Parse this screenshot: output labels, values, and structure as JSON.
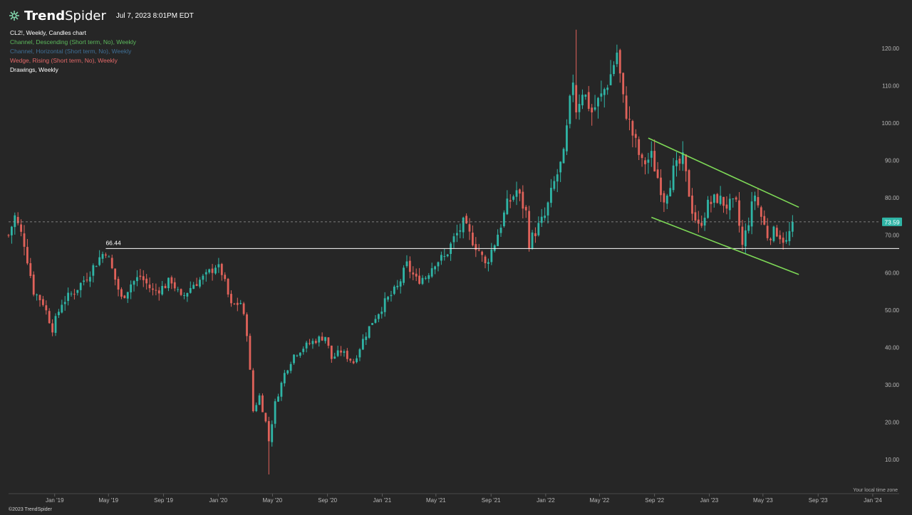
{
  "header": {
    "brand_bold": "Trend",
    "brand_regular": "Spider",
    "timestamp": "Jul 7, 2023 8:01PM EDT"
  },
  "legend": [
    {
      "label": "CL2!, Weekly, Candles chart",
      "color": "#ffffff"
    },
    {
      "label": "Channel, Descending (Short term, No), Weekly",
      "color": "#5cb85c"
    },
    {
      "label": "Channel, Horizontal (Short term, No), Weekly",
      "color": "#3f6f96"
    },
    {
      "label": "Wedge, Rising (Short term, No), Weekly",
      "color": "#e26868"
    },
    {
      "label": "Drawings, Weekly",
      "color": "#ffffff"
    }
  ],
  "footer": {
    "copyright": "©2023 TrendSpider",
    "timezone": "Your local time zone"
  },
  "colors": {
    "background": "#262626",
    "up": "#2fb5a6",
    "down": "#e0625a",
    "channel": "#7ed957",
    "level_line": "#ffffff",
    "last_price_bg": "#2fb5a6"
  },
  "chart_data": {
    "type": "candlestick",
    "timeframe": "Weekly",
    "ylim": [
      4,
      126
    ],
    "xlim": [
      "2018-09-20",
      "2024-02-29"
    ],
    "y_ticks": [
      "10.00",
      "20.00",
      "30.00",
      "40.00",
      "50.00",
      "60.00",
      "70.00",
      "80.00",
      "90.00",
      "100.00",
      "110.00",
      "120.00"
    ],
    "x_ticks": [
      {
        "date": "2019-01-01",
        "label": "Jan '19"
      },
      {
        "date": "2019-05-01",
        "label": "May '19"
      },
      {
        "date": "2019-09-01",
        "label": "Sep '19"
      },
      {
        "date": "2020-01-01",
        "label": "Jan '20"
      },
      {
        "date": "2020-05-01",
        "label": "May '20"
      },
      {
        "date": "2020-09-01",
        "label": "Sep '20"
      },
      {
        "date": "2021-01-01",
        "label": "Jan '21"
      },
      {
        "date": "2021-05-01",
        "label": "May '21"
      },
      {
        "date": "2021-09-01",
        "label": "Sep '21"
      },
      {
        "date": "2022-01-01",
        "label": "Jan '22"
      },
      {
        "date": "2022-05-01",
        "label": "May '22"
      },
      {
        "date": "2022-09-01",
        "label": "Sep '22"
      },
      {
        "date": "2023-01-01",
        "label": "Jan '23"
      },
      {
        "date": "2023-05-01",
        "label": "May '23"
      },
      {
        "date": "2023-09-01",
        "label": "Sep '23"
      },
      {
        "date": "2024-01-01",
        "label": "Jan '24"
      }
    ],
    "last_price": 73.59,
    "last_price_label": "73.59",
    "level": {
      "value": 66.44,
      "label": "66.44",
      "start": "2019-04-25"
    },
    "channel_upper": [
      {
        "date": "2022-08-18",
        "y": 96.0
      },
      {
        "date": "2023-07-20",
        "y": 77.5
      }
    ],
    "channel_lower": [
      {
        "date": "2022-08-25",
        "y": 74.8
      },
      {
        "date": "2023-07-20",
        "y": 59.5
      }
    ],
    "series": [
      {
        "date": "2018-09-20",
        "y": 70
      },
      {
        "date": "2018-10-04",
        "y": 75
      },
      {
        "date": "2018-10-25",
        "y": 68
      },
      {
        "date": "2018-11-15",
        "y": 55
      },
      {
        "date": "2018-12-06",
        "y": 52
      },
      {
        "date": "2018-12-27",
        "y": 45
      },
      {
        "date": "2019-01-17",
        "y": 52
      },
      {
        "date": "2019-02-14",
        "y": 55
      },
      {
        "date": "2019-03-14",
        "y": 59
      },
      {
        "date": "2019-04-11",
        "y": 64
      },
      {
        "date": "2019-04-25",
        "y": 66
      },
      {
        "date": "2019-05-30",
        "y": 53
      },
      {
        "date": "2019-06-20",
        "y": 57
      },
      {
        "date": "2019-07-11",
        "y": 59
      },
      {
        "date": "2019-08-08",
        "y": 55
      },
      {
        "date": "2019-08-29",
        "y": 56
      },
      {
        "date": "2019-09-19",
        "y": 58
      },
      {
        "date": "2019-10-10",
        "y": 53
      },
      {
        "date": "2019-11-07",
        "y": 57
      },
      {
        "date": "2019-12-05",
        "y": 59
      },
      {
        "date": "2019-12-26",
        "y": 62
      },
      {
        "date": "2020-01-09",
        "y": 60
      },
      {
        "date": "2020-01-30",
        "y": 51
      },
      {
        "date": "2020-02-20",
        "y": 52
      },
      {
        "date": "2020-03-05",
        "y": 44
      },
      {
        "date": "2020-03-19",
        "y": 23
      },
      {
        "date": "2020-04-02",
        "y": 27
      },
      {
        "date": "2020-04-16",
        "y": 20
      },
      {
        "date": "2020-04-23",
        "y": 15
      },
      {
        "date": "2020-05-07",
        "y": 25
      },
      {
        "date": "2020-05-28",
        "y": 33
      },
      {
        "date": "2020-06-18",
        "y": 38
      },
      {
        "date": "2020-07-09",
        "y": 40
      },
      {
        "date": "2020-08-06",
        "y": 42
      },
      {
        "date": "2020-08-27",
        "y": 43
      },
      {
        "date": "2020-09-10",
        "y": 37
      },
      {
        "date": "2020-10-01",
        "y": 39
      },
      {
        "date": "2020-10-29",
        "y": 36
      },
      {
        "date": "2020-11-19",
        "y": 42
      },
      {
        "date": "2020-12-10",
        "y": 47
      },
      {
        "date": "2021-01-07",
        "y": 52
      },
      {
        "date": "2021-02-04",
        "y": 56
      },
      {
        "date": "2021-02-25",
        "y": 62
      },
      {
        "date": "2021-03-18",
        "y": 58
      },
      {
        "date": "2021-04-08",
        "y": 59
      },
      {
        "date": "2021-04-29",
        "y": 63
      },
      {
        "date": "2021-05-20",
        "y": 64
      },
      {
        "date": "2021-06-10",
        "y": 69
      },
      {
        "date": "2021-07-01",
        "y": 73
      },
      {
        "date": "2021-07-15",
        "y": 70
      },
      {
        "date": "2021-08-05",
        "y": 66
      },
      {
        "date": "2021-08-19",
        "y": 62
      },
      {
        "date": "2021-09-09",
        "y": 68
      },
      {
        "date": "2021-10-07",
        "y": 78
      },
      {
        "date": "2021-10-28",
        "y": 82
      },
      {
        "date": "2021-11-18",
        "y": 76
      },
      {
        "date": "2021-11-25",
        "y": 68
      },
      {
        "date": "2021-12-09",
        "y": 71
      },
      {
        "date": "2021-12-30",
        "y": 75
      },
      {
        "date": "2022-01-20",
        "y": 84
      },
      {
        "date": "2022-02-10",
        "y": 91
      },
      {
        "date": "2022-03-03",
        "y": 112
      },
      {
        "date": "2022-03-10",
        "y": 104
      },
      {
        "date": "2022-03-24",
        "y": 109
      },
      {
        "date": "2022-04-14",
        "y": 103
      },
      {
        "date": "2022-05-05",
        "y": 107
      },
      {
        "date": "2022-05-26",
        "y": 113
      },
      {
        "date": "2022-06-09",
        "y": 119
      },
      {
        "date": "2022-06-23",
        "y": 106
      },
      {
        "date": "2022-07-14",
        "y": 97
      },
      {
        "date": "2022-08-04",
        "y": 89
      },
      {
        "date": "2022-08-25",
        "y": 91
      },
      {
        "date": "2022-09-22",
        "y": 80
      },
      {
        "date": "2022-10-13",
        "y": 87
      },
      {
        "date": "2022-11-03",
        "y": 90
      },
      {
        "date": "2022-11-24",
        "y": 77
      },
      {
        "date": "2022-12-08",
        "y": 72
      },
      {
        "date": "2022-12-29",
        "y": 78
      },
      {
        "date": "2023-01-19",
        "y": 80
      },
      {
        "date": "2023-02-09",
        "y": 78
      },
      {
        "date": "2023-03-02",
        "y": 78
      },
      {
        "date": "2023-03-16",
        "y": 67
      },
      {
        "date": "2023-03-30",
        "y": 74
      },
      {
        "date": "2023-04-13",
        "y": 81
      },
      {
        "date": "2023-04-27",
        "y": 75
      },
      {
        "date": "2023-05-11",
        "y": 70
      },
      {
        "date": "2023-06-01",
        "y": 71
      },
      {
        "date": "2023-06-22",
        "y": 68
      },
      {
        "date": "2023-07-07",
        "y": 73.59
      }
    ]
  }
}
